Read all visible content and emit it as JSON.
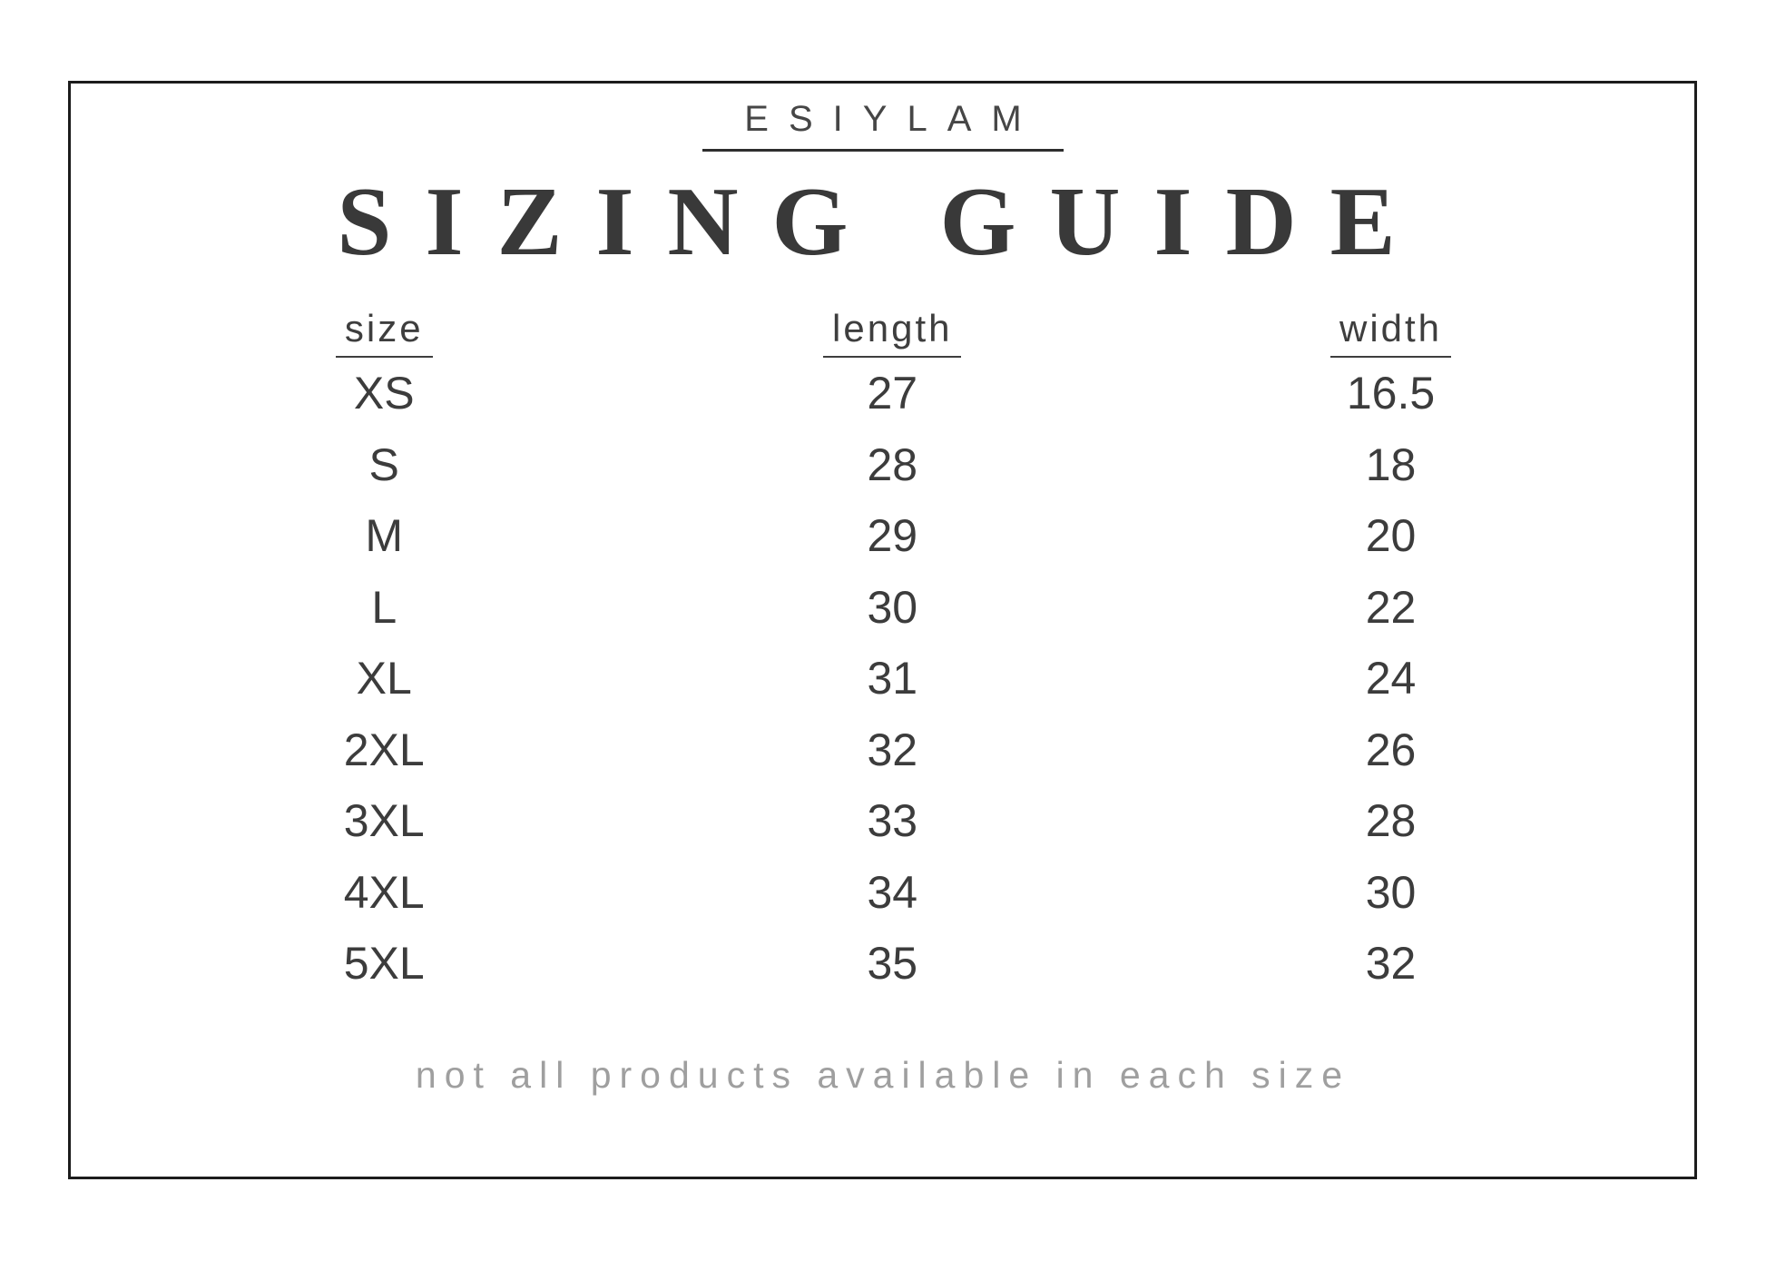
{
  "brand": {
    "name": "ESIYLAM"
  },
  "title": "SIZING GUIDE",
  "table": {
    "columns": [
      "size",
      "length",
      "width"
    ],
    "rows": [
      {
        "size": "XS",
        "length": "27",
        "width": "16.5"
      },
      {
        "size": "S",
        "length": "28",
        "width": "18"
      },
      {
        "size": "M",
        "length": "29",
        "width": "20"
      },
      {
        "size": "L",
        "length": "30",
        "width": "22"
      },
      {
        "size": "XL",
        "length": "31",
        "width": "24"
      },
      {
        "size": "2XL",
        "length": "32",
        "width": "26"
      },
      {
        "size": "3XL",
        "length": "33",
        "width": "28"
      },
      {
        "size": "4XL",
        "length": "34",
        "width": "30"
      },
      {
        "size": "5XL",
        "length": "35",
        "width": "32"
      }
    ]
  },
  "footnote": "not all products available in each size",
  "colors": {
    "frame_border": "#1c1c1c",
    "heading_text": "#393939",
    "body_text": "#3c3c3c",
    "footnote_text": "#9f9f9f",
    "background": "#ffffff"
  }
}
